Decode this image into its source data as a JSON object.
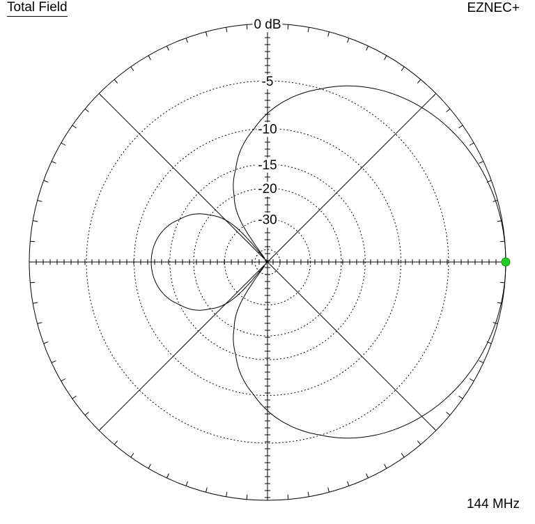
{
  "header": {
    "title": "Total Field",
    "brand": "EZNEC+"
  },
  "footer": {
    "frequency": "144 MHz"
  },
  "colors": {
    "max_marker": "#22cc22",
    "line": "#000000",
    "grid": "#000000"
  },
  "chart_data": {
    "type": "polar",
    "title": "Total Field",
    "scale_unit": "dB",
    "ring_labels": [
      "0 dB",
      "-5",
      "-10",
      "-15",
      "-20",
      "-30"
    ],
    "ring_db": [
      0,
      -5,
      -10,
      -15,
      -20,
      -30
    ],
    "grid_lines_deg": [
      0,
      45,
      90,
      135
    ],
    "pattern_type": "cardioid",
    "max_gain_direction_deg": 0,
    "max_gain_db": 0,
    "pattern_db": [
      {
        "az": 0,
        "db": 0
      },
      {
        "az": 15,
        "db": -0.1
      },
      {
        "az": 30,
        "db": -0.4
      },
      {
        "az": 45,
        "db": -1.0
      },
      {
        "az": 60,
        "db": -2.0
      },
      {
        "az": 75,
        "db": -3.7
      },
      {
        "az": 90,
        "db": -6.2
      },
      {
        "az": 105,
        "db": -10.5
      },
      {
        "az": 120,
        "db": -18.5
      },
      {
        "az": 132,
        "db": -40
      },
      {
        "az": 150,
        "db": -22.5
      },
      {
        "az": 165,
        "db": -18.2
      },
      {
        "az": 180,
        "db": -17.4
      },
      {
        "az": 195,
        "db": -18.2
      },
      {
        "az": 210,
        "db": -22.5
      },
      {
        "az": 228,
        "db": -40
      },
      {
        "az": 240,
        "db": -18.5
      },
      {
        "az": 255,
        "db": -10.5
      },
      {
        "az": 270,
        "db": -6.2
      },
      {
        "az": 285,
        "db": -3.7
      },
      {
        "az": 300,
        "db": -2.0
      },
      {
        "az": 315,
        "db": -1.0
      },
      {
        "az": 330,
        "db": -0.4
      },
      {
        "az": 345,
        "db": -0.1
      }
    ]
  }
}
